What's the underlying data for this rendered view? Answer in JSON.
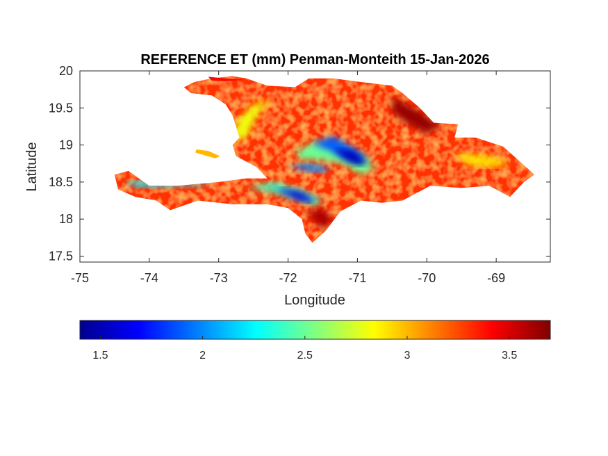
{
  "chart_data": {
    "type": "heatmap",
    "title": "REFERENCE ET (mm) Penman-Monteith 15-Jan-2026",
    "xlabel": "Longitude",
    "ylabel": "Latitude",
    "xlim": [
      -75,
      -68.22
    ],
    "ylim": [
      17.42,
      20
    ],
    "xticks": [
      -75,
      -74,
      -73,
      -72,
      -71,
      -70,
      -69
    ],
    "yticks": [
      17.5,
      18,
      18.5,
      19,
      19.5,
      20
    ],
    "grid": false,
    "colorbar": {
      "orientation": "horizontal",
      "placement": "bottom",
      "colormap": "jet",
      "clim": [
        1.4,
        3.7
      ],
      "ticks": [
        1.5,
        2,
        2.5,
        3,
        3.5
      ],
      "colors": [
        "#00008f",
        "#0000ff",
        "#0080ff",
        "#00ffff",
        "#80ff80",
        "#ffff00",
        "#ff8000",
        "#ff0000",
        "#800000"
      ]
    },
    "map": {
      "region": "Hispaniola",
      "outline_lonlat": [
        [
          -72.6,
          19.9
        ],
        [
          -72.8,
          19.93
        ],
        [
          -73.1,
          19.9
        ],
        [
          -73.35,
          19.85
        ],
        [
          -73.5,
          19.78
        ],
        [
          -73.4,
          19.7
        ],
        [
          -73.1,
          19.67
        ],
        [
          -72.9,
          19.55
        ],
        [
          -72.8,
          19.4
        ],
        [
          -72.7,
          19.1
        ],
        [
          -72.8,
          19.0
        ],
        [
          -72.75,
          18.85
        ],
        [
          -72.45,
          18.7
        ],
        [
          -72.3,
          18.55
        ],
        [
          -72.6,
          18.55
        ],
        [
          -73.0,
          18.5
        ],
        [
          -73.6,
          18.45
        ],
        [
          -74.0,
          18.45
        ],
        [
          -74.3,
          18.65
        ],
        [
          -74.5,
          18.6
        ],
        [
          -74.45,
          18.4
        ],
        [
          -74.2,
          18.3
        ],
        [
          -73.9,
          18.25
        ],
        [
          -73.7,
          18.12
        ],
        [
          -73.3,
          18.25
        ],
        [
          -72.8,
          18.2
        ],
        [
          -72.3,
          18.2
        ],
        [
          -72.0,
          18.15
        ],
        [
          -71.8,
          18.0
        ],
        [
          -71.75,
          17.8
        ],
        [
          -71.65,
          17.68
        ],
        [
          -71.45,
          17.85
        ],
        [
          -71.25,
          18.1
        ],
        [
          -70.95,
          18.25
        ],
        [
          -70.65,
          18.22
        ],
        [
          -70.35,
          18.25
        ],
        [
          -69.95,
          18.45
        ],
        [
          -69.5,
          18.42
        ],
        [
          -69.1,
          18.45
        ],
        [
          -68.8,
          18.3
        ],
        [
          -68.6,
          18.5
        ],
        [
          -68.45,
          18.6
        ],
        [
          -68.9,
          18.98
        ],
        [
          -69.3,
          19.1
        ],
        [
          -69.6,
          19.1
        ],
        [
          -69.55,
          19.28
        ],
        [
          -69.9,
          19.3
        ],
        [
          -70.1,
          19.5
        ],
        [
          -70.35,
          19.7
        ],
        [
          -70.5,
          19.8
        ],
        [
          -70.95,
          19.85
        ],
        [
          -71.35,
          19.9
        ],
        [
          -71.7,
          19.9
        ],
        [
          -71.9,
          19.78
        ],
        [
          -72.3,
          19.8
        ]
      ],
      "tortuga_lonlat": [
        [
          -73.15,
          19.92
        ],
        [
          -72.9,
          19.9
        ],
        [
          -72.65,
          19.88
        ],
        [
          -72.9,
          19.86
        ],
        [
          -73.1,
          19.87
        ]
      ],
      "gonave_lonlat": [
        [
          -73.32,
          18.94
        ],
        [
          -73.15,
          18.92
        ],
        [
          -72.98,
          18.85
        ],
        [
          -73.05,
          18.82
        ],
        [
          -73.2,
          18.86
        ],
        [
          -73.34,
          18.9
        ]
      ],
      "value_zones": [
        {
          "lonlat": [
            [
              -71.9,
              18.9
            ],
            [
              -71.6,
              19.05
            ],
            [
              -71.3,
              19.0
            ],
            [
              -70.9,
              18.85
            ],
            [
              -70.75,
              18.7
            ],
            [
              -70.95,
              18.6
            ],
            [
              -71.2,
              18.75
            ],
            [
              -71.5,
              18.8
            ],
            [
              -71.8,
              18.8
            ]
          ],
          "value": 2.5
        },
        {
          "lonlat": [
            [
              -71.65,
              19.02
            ],
            [
              -71.35,
              19.12
            ],
            [
              -71.05,
              18.95
            ],
            [
              -70.85,
              18.8
            ],
            [
              -71.1,
              18.78
            ],
            [
              -71.35,
              18.9
            ]
          ],
          "value": 1.9
        },
        {
          "lonlat": [
            [
              -71.35,
              18.95
            ],
            [
              -71.05,
              18.92
            ],
            [
              -70.85,
              18.75
            ],
            [
              -71.0,
              18.72
            ],
            [
              -71.2,
              18.82
            ]
          ],
          "value": 1.5
        },
        {
          "lonlat": [
            [
              -72.6,
              18.42
            ],
            [
              -72.2,
              18.5
            ],
            [
              -71.8,
              18.38
            ],
            [
              -71.5,
              18.25
            ],
            [
              -71.6,
              18.18
            ],
            [
              -71.9,
              18.28
            ],
            [
              -72.3,
              18.38
            ]
          ],
          "value": 2.4
        },
        {
          "lonlat": [
            [
              -72.2,
              18.42
            ],
            [
              -71.85,
              18.38
            ],
            [
              -71.6,
              18.25
            ],
            [
              -71.75,
              18.22
            ],
            [
              -72.0,
              18.32
            ]
          ],
          "value": 1.6
        },
        {
          "lonlat": [
            [
              -72.0,
              18.72
            ],
            [
              -71.7,
              18.75
            ],
            [
              -71.4,
              18.68
            ],
            [
              -71.5,
              18.62
            ],
            [
              -71.8,
              18.66
            ]
          ],
          "value": 2.0
        },
        {
          "lonlat": [
            [
              -74.35,
              18.52
            ],
            [
              -74.0,
              18.5
            ],
            [
              -73.6,
              18.46
            ],
            [
              -73.1,
              18.47
            ],
            [
              -73.3,
              18.43
            ],
            [
              -73.8,
              18.42
            ],
            [
              -74.2,
              18.43
            ]
          ],
          "value": 2.2
        },
        {
          "lonlat": [
            [
              -72.85,
              19.05
            ],
            [
              -72.7,
              19.35
            ],
            [
              -72.5,
              19.55
            ],
            [
              -72.25,
              19.6
            ],
            [
              -72.45,
              19.4
            ],
            [
              -72.6,
              19.1
            ]
          ],
          "value": 2.8
        },
        {
          "lonlat": [
            [
              -70.5,
              19.65
            ],
            [
              -70.1,
              19.45
            ],
            [
              -69.8,
              19.25
            ],
            [
              -70.0,
              19.15
            ],
            [
              -70.3,
              19.3
            ],
            [
              -70.5,
              19.45
            ]
          ],
          "value": 3.65
        },
        {
          "lonlat": [
            [
              -71.75,
              18.1
            ],
            [
              -71.5,
              17.85
            ],
            [
              -71.35,
              18.0
            ],
            [
              -71.5,
              18.15
            ]
          ],
          "value": 3.6
        },
        {
          "lonlat": [
            [
              -69.6,
              18.9
            ],
            [
              -69.1,
              18.85
            ],
            [
              -68.8,
              18.75
            ],
            [
              -69.0,
              18.7
            ],
            [
              -69.4,
              18.72
            ]
          ],
          "value": 2.9
        }
      ],
      "background_value": 3.3
    }
  }
}
